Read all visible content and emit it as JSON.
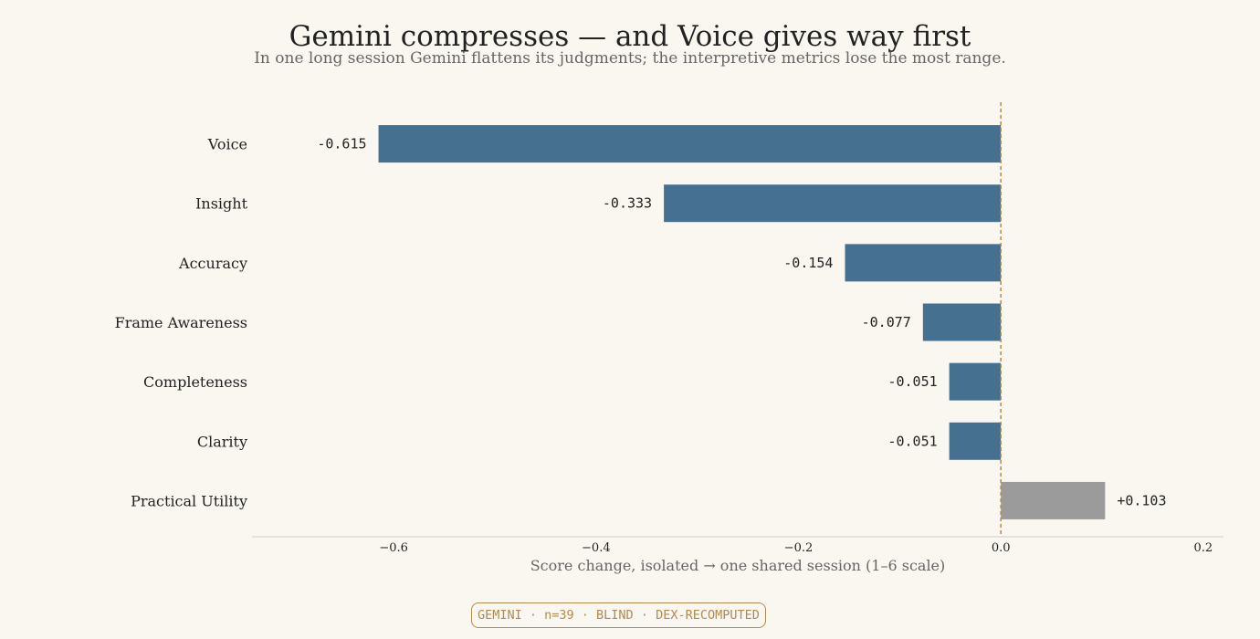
{
  "title": "Gemini compresses — and Voice gives way first",
  "subtitle": "In one long session Gemini flattens its judgments; the interpretive metrics lose the most range.",
  "footer_badge": "GEMINI · n=39 · BLIND · DEX-RECOMPUTED",
  "chart_data": {
    "type": "bar",
    "orientation": "horizontal",
    "categories": [
      "Voice",
      "Insight",
      "Accuracy",
      "Frame Awareness",
      "Completeness",
      "Clarity",
      "Practical Utility"
    ],
    "values": [
      -0.615,
      -0.333,
      -0.154,
      -0.077,
      -0.051,
      -0.051,
      0.103
    ],
    "value_labels": [
      "-0.615",
      "-0.333",
      "-0.154",
      "-0.077",
      "-0.051",
      "-0.051",
      "+0.103"
    ],
    "xlabel": "Score change, isolated → one shared session  (1–6 scale)",
    "xlim": [
      -0.74,
      0.22
    ],
    "xticks": [
      -0.6,
      -0.4,
      -0.2,
      0.0,
      0.2
    ],
    "xtick_labels": [
      "−0.6",
      "−0.4",
      "−0.2",
      "0.0",
      "0.2"
    ],
    "reference_line": 0.0,
    "grid": false,
    "colors": {
      "negative": "#45708f",
      "positive": "#9b9b9b",
      "reference_line": "#b08a50",
      "axis": "#cccccc"
    }
  }
}
